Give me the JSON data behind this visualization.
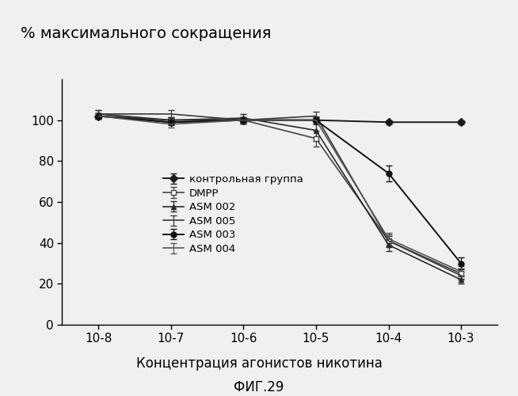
{
  "title": "% максимального сокращения",
  "xlabel": "Концентрация агонистов никотина",
  "xlabel2": "ФИГ.29",
  "x_labels": [
    "10-8",
    "10-7",
    "10-6",
    "10-5",
    "10-4",
    "10-3"
  ],
  "x_values": [
    1,
    2,
    3,
    4,
    5,
    6
  ],
  "series": [
    {
      "label": "контрольная группа",
      "y": [
        102,
        99,
        100,
        100,
        99,
        99
      ],
      "yerr": [
        1.5,
        1.0,
        1.0,
        1.0,
        1.0,
        1.0
      ],
      "color": "#1a1a1a",
      "marker": "D",
      "markersize": 5,
      "linewidth": 1.4,
      "linestyle": "-",
      "markerfacecolor": "#1a1a1a"
    },
    {
      "label": "DMPP",
      "y": [
        102,
        100,
        100,
        91,
        41,
        25
      ],
      "yerr": [
        1.5,
        1.5,
        1.5,
        4.0,
        3.0,
        2.5
      ],
      "color": "#444444",
      "marker": "s",
      "markersize": 5,
      "linewidth": 1.2,
      "linestyle": "-",
      "markerfacecolor": "white"
    },
    {
      "label": "ASM 002",
      "y": [
        103,
        100,
        101,
        95,
        39,
        22
      ],
      "yerr": [
        2.0,
        1.5,
        2.0,
        5.0,
        3.0,
        2.0
      ],
      "color": "#2a2a2a",
      "marker": "^",
      "markersize": 5,
      "linewidth": 1.2,
      "linestyle": "-",
      "markerfacecolor": "#2a2a2a"
    },
    {
      "label": "ASM 005",
      "y": [
        103,
        103,
        100,
        102,
        41,
        24
      ],
      "yerr": [
        2.0,
        2.0,
        1.5,
        2.0,
        2.5,
        2.0
      ],
      "color": "#3a3a3a",
      "marker": "None",
      "markersize": 0,
      "linewidth": 1.2,
      "linestyle": "-",
      "markerfacecolor": "#3a3a3a"
    },
    {
      "label": "ASM 003",
      "y": [
        102,
        99,
        100,
        100,
        74,
        30
      ],
      "yerr": [
        1.5,
        1.5,
        1.5,
        1.5,
        4.0,
        3.0
      ],
      "color": "#111111",
      "marker": "o",
      "markersize": 5,
      "linewidth": 1.4,
      "linestyle": "-",
      "markerfacecolor": "#111111"
    },
    {
      "label": "ASM 004",
      "y": [
        102,
        98,
        100,
        100,
        42,
        26
      ],
      "yerr": [
        1.5,
        1.5,
        1.5,
        2.0,
        3.0,
        2.5
      ],
      "color": "#555555",
      "marker": "None",
      "markersize": 0,
      "linewidth": 1.2,
      "linestyle": "-",
      "markerfacecolor": "#555555"
    }
  ],
  "ylim": [
    0,
    120
  ],
  "yticks": [
    0,
    20,
    40,
    60,
    80,
    100
  ],
  "background_color": "#f0f0f0",
  "legend_fontsize": 9.5,
  "title_fontsize": 14
}
